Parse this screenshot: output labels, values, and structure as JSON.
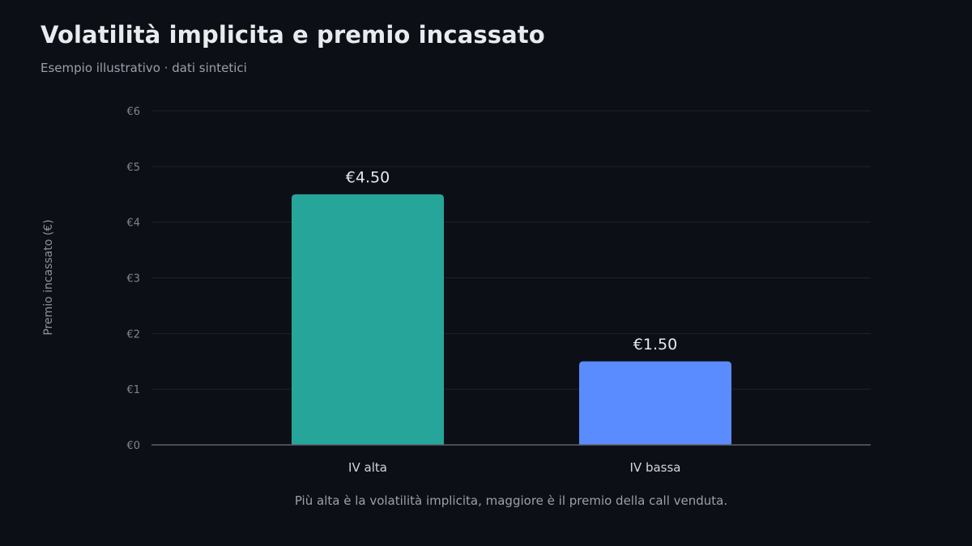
{
  "header": {
    "title": "Volatilità implicita e premio incassato",
    "subtitle": "Esempio illustrativo · dati sintetici"
  },
  "footer": {
    "caption": "Più alta è la volatilità implicita, maggiore è il premio della call venduta."
  },
  "colors": {
    "background": "#0c0f15",
    "bar_high": "#26a69a",
    "bar_low": "#5b8cff",
    "grid": "#1f232b",
    "axis": "#5d626b"
  },
  "chart_data": {
    "type": "bar",
    "title": "Volatilità implicita e premio incassato",
    "subtitle": "Esempio illustrativo · dati sintetici",
    "xlabel": "",
    "ylabel": "Premio incassato (€)",
    "categories": [
      "IV alta",
      "IV bassa"
    ],
    "values": [
      4.5,
      1.5
    ],
    "value_labels": [
      "€4.50",
      "€1.50"
    ],
    "bar_colors": [
      "#26a69a",
      "#5b8cff"
    ],
    "ylim": [
      0,
      6
    ],
    "yticks": [
      0,
      1,
      2,
      3,
      4,
      5,
      6
    ],
    "ytick_labels": [
      "€0",
      "€1",
      "€2",
      "€3",
      "€4",
      "€5",
      "€6"
    ],
    "grid": true,
    "legend": "none"
  }
}
